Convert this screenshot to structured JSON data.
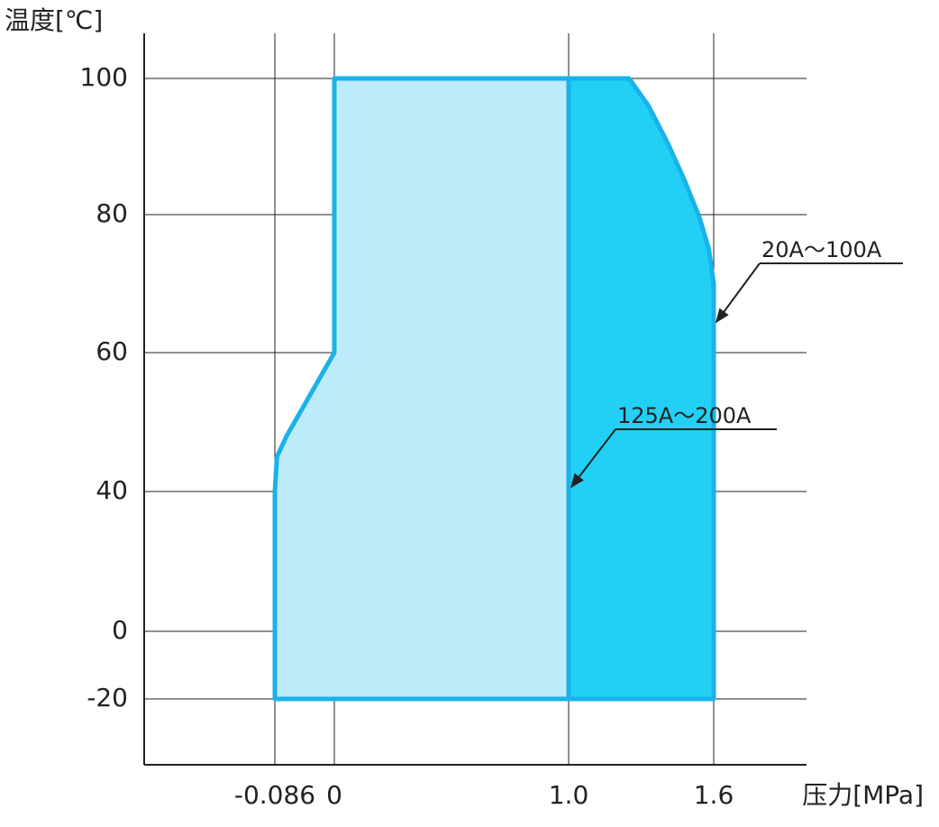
{
  "chart_data": {
    "type": "area",
    "x_label": "压力[MPa]",
    "y_label": "温度[℃]",
    "xlim": [
      -0.3,
      2.0
    ],
    "xticks": [
      -0.086,
      0,
      {
        "value": 1,
        "label": "1.0"
      },
      1.6
    ],
    "ylim": [
      -40,
      106.5
    ],
    "yticks": [
      -20,
      0,
      40,
      60,
      80,
      100
    ],
    "grid": true,
    "series": [
      {
        "name": "125A～200A",
        "color": "#bdebfa",
        "x": [
          -0.086,
          -0.086,
          -0.083,
          -0.069,
          0,
          0,
          1.0,
          1.0,
          -0.086
        ],
        "values": [
          -20,
          40,
          45,
          48,
          60,
          100,
          100,
          -20,
          -20
        ]
      },
      {
        "name": "20A～100A",
        "color": "#22d0f5",
        "x": [
          1.0,
          1.25,
          1.33,
          1.41,
          1.48,
          1.54,
          1.58,
          1.6,
          1.6,
          1.0,
          1.0
        ],
        "values": [
          100,
          100,
          96,
          90.5,
          85,
          79.7,
          75,
          70,
          -20,
          -20,
          100
        ]
      }
    ]
  }
}
